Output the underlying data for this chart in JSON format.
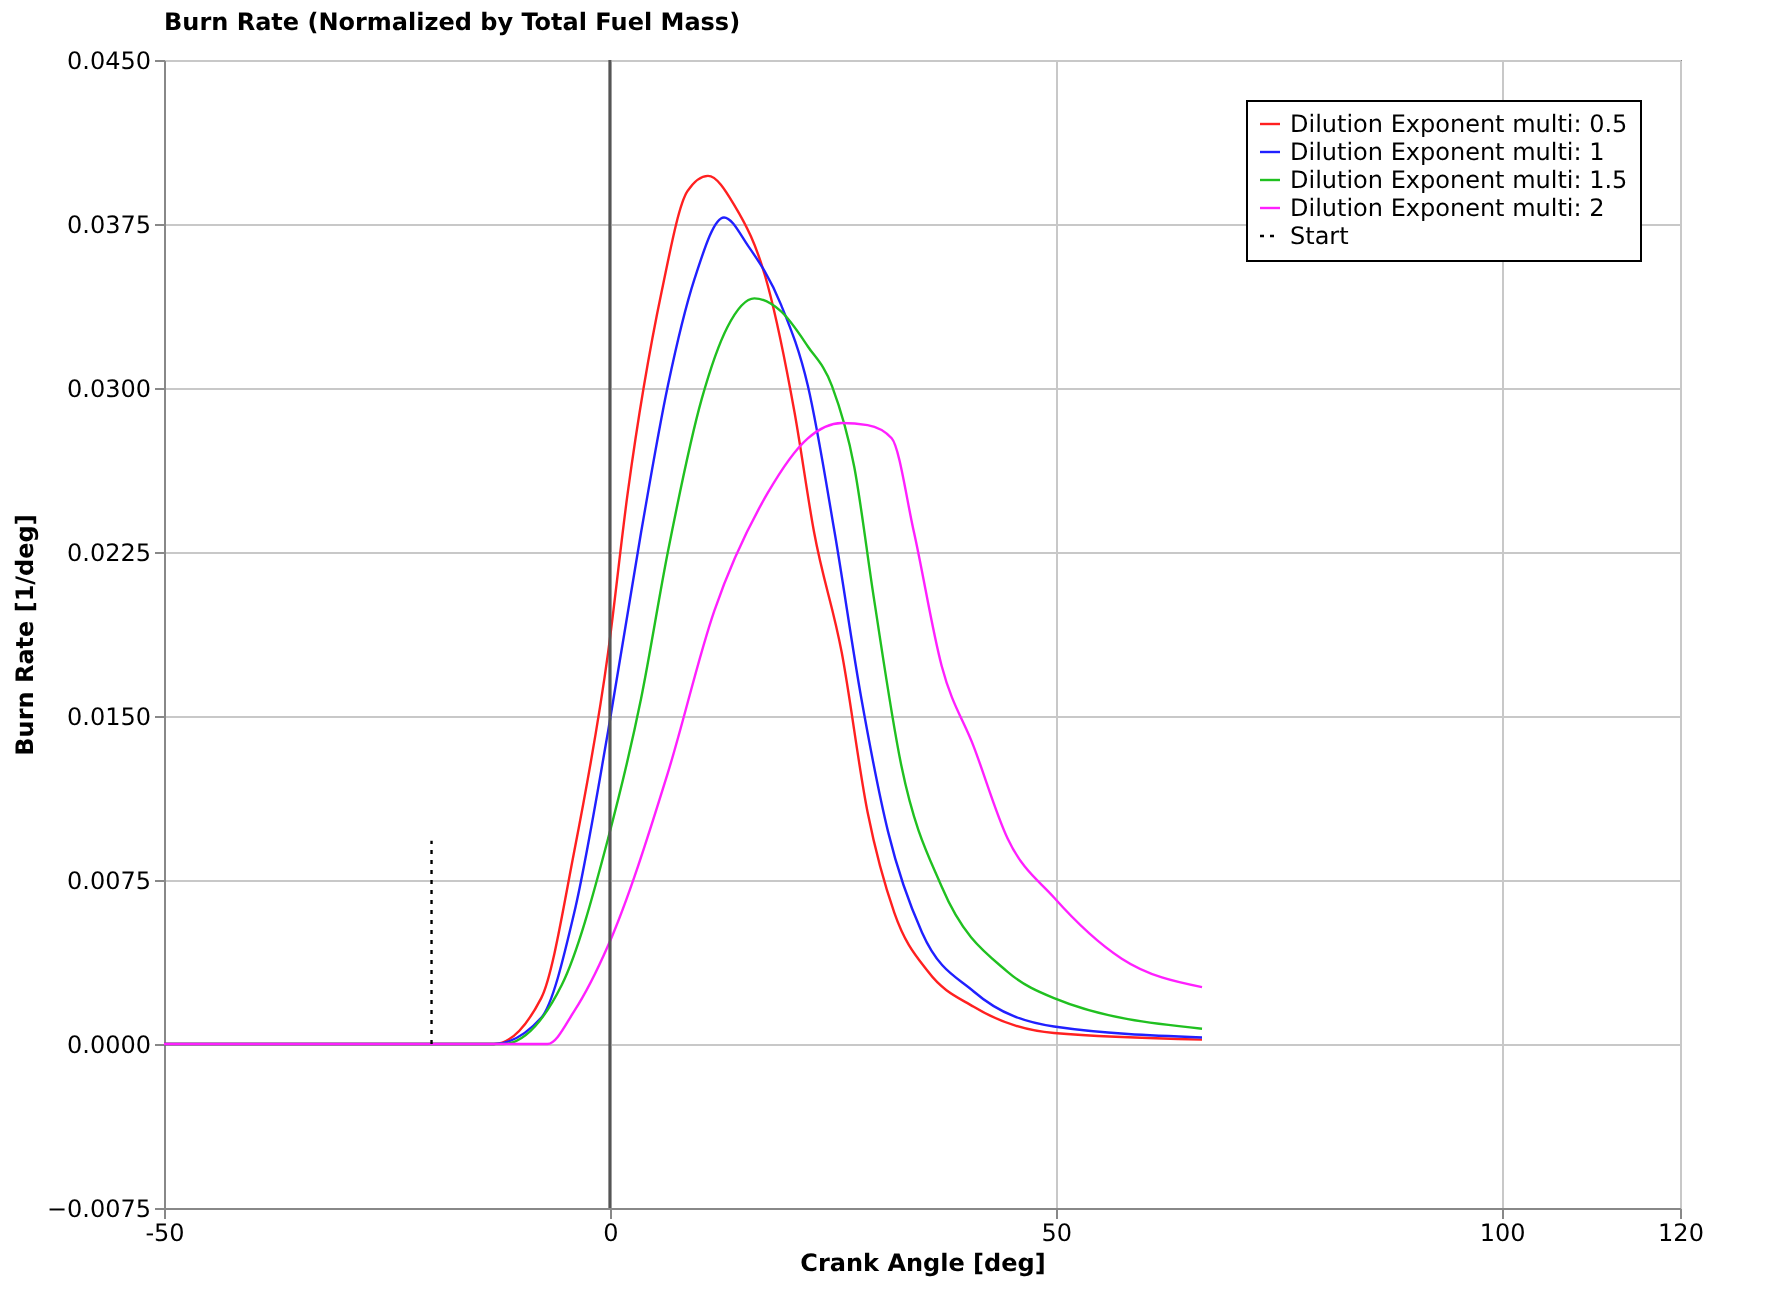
{
  "chart_data": {
    "type": "line",
    "title": "Burn Rate (Normalized by Total Fuel Mass)",
    "xlabel": "Crank Angle [deg]",
    "ylabel": "Burn Rate [1/deg]",
    "xlim": [
      -50,
      120
    ],
    "xticks": [
      -50,
      0,
      50,
      100,
      120
    ],
    "ylim": [
      -0.0075,
      0.045
    ],
    "yticks": [
      {
        "value": -0.0075,
        "label": "−0.0075"
      },
      {
        "value": 0,
        "label": "0.0000"
      },
      {
        "value": 0.0075,
        "label": "0.0075"
      },
      {
        "value": 0.015,
        "label": "0.0150"
      },
      {
        "value": 0.0225,
        "label": "0.0225"
      },
      {
        "value": 0.03,
        "label": "0.0300"
      },
      {
        "value": 0.0375,
        "label": "0.0375"
      },
      {
        "value": 0.045,
        "label": "0.0450"
      }
    ],
    "grid": true,
    "legend": "top right",
    "line_style": "solid",
    "ref_lines": [
      {
        "axis": "x",
        "value": 0,
        "color": "#555555"
      }
    ],
    "series": [
      {
        "name": "Dilution Exponent multi: 0.5",
        "color": "#ff2020",
        "x": [
          -50,
          -13,
          -7.7,
          -4.0,
          -0.2,
          2.0,
          5.8,
          8.7,
          11.0,
          13.9,
          17.7,
          20.7,
          22.9,
          26.0,
          28.9,
          31.9,
          35.7,
          40.8,
          49.8,
          66.4
        ],
        "values": [
          0,
          0,
          0.0021,
          0.0088,
          0.0179,
          0.0252,
          0.0344,
          0.039,
          0.0397,
          0.0384,
          0.0347,
          0.0289,
          0.0234,
          0.0179,
          0.0106,
          0.006,
          0.0033,
          0.0017,
          0.0005,
          0.0002
        ]
      },
      {
        "name": "Dilution Exponent multi: 1",
        "color": "#2020ff",
        "x": [
          -50,
          -13,
          -7.7,
          -4.0,
          -0.2,
          3.5,
          6.5,
          9.5,
          12.8,
          15.5,
          19.2,
          22.2,
          25.2,
          28.2,
          31.2,
          35.0,
          40.8,
          49.8,
          66.4
        ],
        "values": [
          0,
          0,
          0.0012,
          0.006,
          0.0143,
          0.0234,
          0.0301,
          0.035,
          0.0378,
          0.0365,
          0.0338,
          0.0301,
          0.0234,
          0.0158,
          0.0097,
          0.0051,
          0.0024,
          0.0008,
          0.0003
        ]
      },
      {
        "name": "Dilution Exponent multi: 1.5",
        "color": "#20c020",
        "x": [
          -50,
          -12,
          -5.4,
          -0.2,
          3.5,
          6.5,
          10.3,
          13.2,
          16.2,
          19.2,
          22.2,
          24.9,
          27.4,
          29.6,
          32.7,
          37.2,
          44.6,
          49.8,
          66.4
        ],
        "values": [
          0,
          0,
          0.0027,
          0.0094,
          0.0158,
          0.0225,
          0.0295,
          0.0328,
          0.0341,
          0.0335,
          0.0319,
          0.0301,
          0.0264,
          0.0204,
          0.0127,
          0.0072,
          0.0033,
          0.0021,
          0.0007
        ]
      },
      {
        "name": "Dilution Exponent multi: 2",
        "color": "#ff20ff",
        "x": [
          -50,
          -7,
          -4.0,
          -0.2,
          6.5,
          11.7,
          17.7,
          22.2,
          26.0,
          28.9,
          31.6,
          34.1,
          37.2,
          40.8,
          44.6,
          49.8,
          57.4,
          66.4
        ],
        "values": [
          0,
          0,
          0.0015,
          0.0045,
          0.0124,
          0.0198,
          0.0252,
          0.0277,
          0.0284,
          0.0283,
          0.0277,
          0.0234,
          0.0173,
          0.0136,
          0.0094,
          0.0067,
          0.0039,
          0.0026
        ]
      },
      {
        "name": "Start",
        "color": "#000000",
        "line_style": "dotted",
        "x": [
          -20,
          -20
        ],
        "values": [
          0,
          0.0093
        ]
      }
    ]
  }
}
